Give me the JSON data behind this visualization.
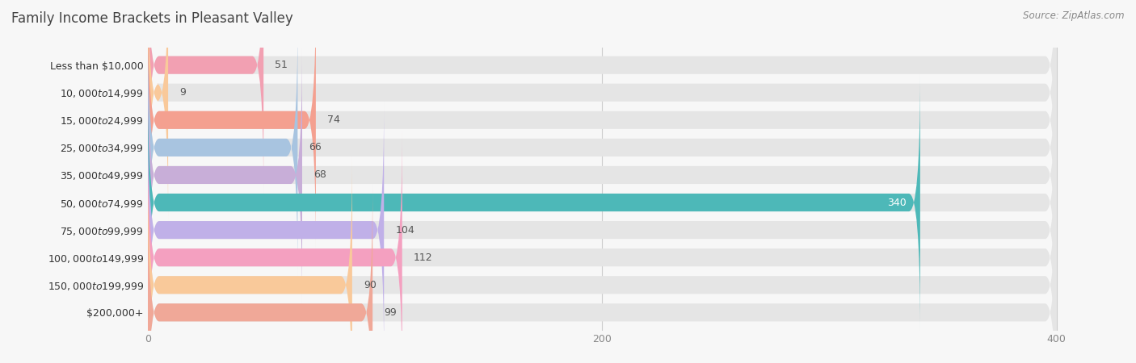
{
  "title": "Family Income Brackets in Pleasant Valley",
  "source": "Source: ZipAtlas.com",
  "categories": [
    "Less than $10,000",
    "$10,000 to $14,999",
    "$15,000 to $24,999",
    "$25,000 to $34,999",
    "$35,000 to $49,999",
    "$50,000 to $74,999",
    "$75,000 to $99,999",
    "$100,000 to $149,999",
    "$150,000 to $199,999",
    "$200,000+"
  ],
  "values": [
    51,
    9,
    74,
    66,
    68,
    340,
    104,
    112,
    90,
    99
  ],
  "bar_colors": [
    "#f2a0b2",
    "#f9c99a",
    "#f4a090",
    "#a8c4e0",
    "#c8aed8",
    "#4db8b8",
    "#c0b0e8",
    "#f4a0c0",
    "#f9c99a",
    "#f0a898"
  ],
  "value_label_color_normal": "#555555",
  "value_label_color_highlight": "#ffffff",
  "xlim": [
    0,
    420
  ],
  "xticks": [
    0,
    200,
    400
  ],
  "background_color": "#f7f7f7",
  "bar_background_color": "#e5e5e5",
  "title_color": "#444444",
  "title_fontsize": 12,
  "label_fontsize": 9,
  "value_fontsize": 9,
  "source_fontsize": 8.5,
  "bar_height": 0.65,
  "bar_rounding": 5
}
